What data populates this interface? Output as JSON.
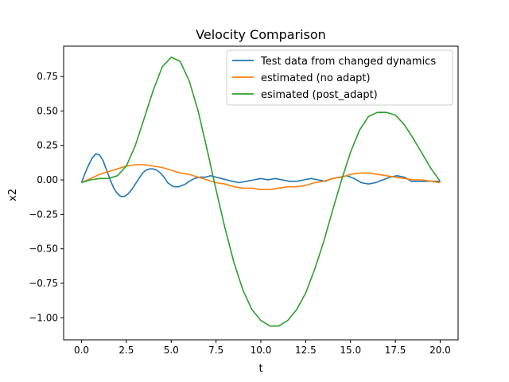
{
  "chart_data": {
    "type": "line",
    "title": "Velocity Comparison",
    "xlabel": "t",
    "ylabel": "x2",
    "xlim": [
      -1.0,
      21.0
    ],
    "ylim": [
      -1.16,
      0.97
    ],
    "xticks": [
      0.0,
      2.5,
      5.0,
      7.5,
      10.0,
      12.5,
      15.0,
      17.5,
      20.0
    ],
    "xtick_labels": [
      "0.0",
      "2.5",
      "5.0",
      "7.5",
      "10.0",
      "12.5",
      "15.0",
      "17.5",
      "20.0"
    ],
    "yticks": [
      0.75,
      0.5,
      0.25,
      0.0,
      -0.25,
      -0.5,
      -0.75,
      -1.0
    ],
    "ytick_labels": [
      "0.75",
      "0.50",
      "0.25",
      "0.00",
      "−0.25",
      "−0.50",
      "−0.75",
      "−1.00"
    ],
    "grid": false,
    "legend_position": "top-right",
    "series": [
      {
        "name": "Test data from changed dynamics",
        "color": "#1f77b4",
        "x": [
          0.0,
          0.2,
          0.4,
          0.6,
          0.8,
          1.0,
          1.2,
          1.4,
          1.6,
          1.8,
          2.0,
          2.2,
          2.4,
          2.6,
          2.8,
          3.0,
          3.2,
          3.4,
          3.6,
          3.8,
          4.0,
          4.2,
          4.4,
          4.6,
          4.8,
          5.0,
          5.2,
          5.4,
          5.6,
          5.8,
          6.0,
          6.3,
          6.6,
          6.9,
          7.2,
          7.5,
          7.8,
          8.1,
          8.4,
          8.8,
          9.2,
          9.6,
          10.0,
          10.4,
          10.8,
          11.2,
          11.6,
          12.0,
          12.4,
          12.8,
          13.2,
          13.6,
          14.0,
          14.4,
          14.8,
          15.2,
          15.6,
          16.0,
          16.4,
          16.8,
          17.2,
          17.6,
          18.0,
          18.4,
          18.8,
          19.2,
          19.6,
          20.0
        ],
        "y": [
          -0.02,
          0.05,
          0.11,
          0.16,
          0.19,
          0.18,
          0.14,
          0.07,
          0.0,
          -0.06,
          -0.1,
          -0.12,
          -0.12,
          -0.1,
          -0.07,
          -0.03,
          0.01,
          0.05,
          0.07,
          0.08,
          0.08,
          0.07,
          0.05,
          0.02,
          -0.02,
          -0.04,
          -0.05,
          -0.05,
          -0.04,
          -0.03,
          -0.01,
          0.01,
          0.02,
          0.02,
          0.03,
          0.02,
          0.01,
          0.0,
          -0.01,
          -0.02,
          -0.01,
          0.0,
          0.01,
          0.0,
          0.01,
          0.0,
          -0.01,
          -0.01,
          0.0,
          0.01,
          0.0,
          -0.01,
          0.01,
          0.02,
          0.03,
          0.01,
          -0.02,
          -0.03,
          -0.02,
          0.0,
          0.02,
          0.03,
          0.02,
          -0.01,
          -0.01,
          -0.01,
          -0.01,
          -0.01
        ]
      },
      {
        "name": "estimated (no adapt)",
        "color": "#ff7f0e",
        "x": [
          0.0,
          0.5,
          1.0,
          1.5,
          2.0,
          2.5,
          3.0,
          3.5,
          4.0,
          4.5,
          5.0,
          5.5,
          6.0,
          6.5,
          7.0,
          7.5,
          8.0,
          8.5,
          9.0,
          9.5,
          10.0,
          10.5,
          11.0,
          11.5,
          12.0,
          12.5,
          13.0,
          13.5,
          14.0,
          14.5,
          15.0,
          15.5,
          16.0,
          16.5,
          17.0,
          17.5,
          18.0,
          18.5,
          19.0,
          19.5,
          20.0
        ],
        "y": [
          -0.02,
          0.01,
          0.04,
          0.06,
          0.08,
          0.1,
          0.11,
          0.11,
          0.1,
          0.09,
          0.07,
          0.05,
          0.04,
          0.02,
          0.0,
          -0.02,
          -0.03,
          -0.05,
          -0.06,
          -0.06,
          -0.07,
          -0.07,
          -0.06,
          -0.05,
          -0.05,
          -0.04,
          -0.02,
          -0.01,
          0.01,
          0.02,
          0.04,
          0.05,
          0.05,
          0.04,
          0.03,
          0.02,
          0.01,
          0.0,
          0.0,
          -0.01,
          -0.02
        ]
      },
      {
        "name": "esimated (post_adapt)",
        "color": "#2ca02c",
        "x": [
          0.0,
          0.5,
          1.0,
          1.5,
          2.0,
          2.5,
          3.0,
          3.5,
          4.0,
          4.5,
          5.0,
          5.5,
          6.0,
          6.5,
          7.0,
          7.5,
          8.0,
          8.5,
          9.0,
          9.5,
          10.0,
          10.5,
          11.0,
          11.5,
          12.0,
          12.5,
          13.0,
          13.5,
          14.0,
          14.5,
          15.0,
          15.5,
          16.0,
          16.5,
          17.0,
          17.5,
          18.0,
          18.5,
          19.0,
          19.5,
          20.0
        ],
        "y": [
          -0.02,
          0.0,
          0.01,
          0.01,
          0.03,
          0.1,
          0.25,
          0.45,
          0.65,
          0.82,
          0.89,
          0.86,
          0.72,
          0.5,
          0.22,
          -0.07,
          -0.35,
          -0.6,
          -0.8,
          -0.94,
          -1.02,
          -1.06,
          -1.06,
          -1.02,
          -0.94,
          -0.82,
          -0.65,
          -0.45,
          -0.22,
          0.0,
          0.2,
          0.36,
          0.46,
          0.49,
          0.49,
          0.47,
          0.4,
          0.3,
          0.19,
          0.08,
          -0.01
        ]
      }
    ]
  }
}
